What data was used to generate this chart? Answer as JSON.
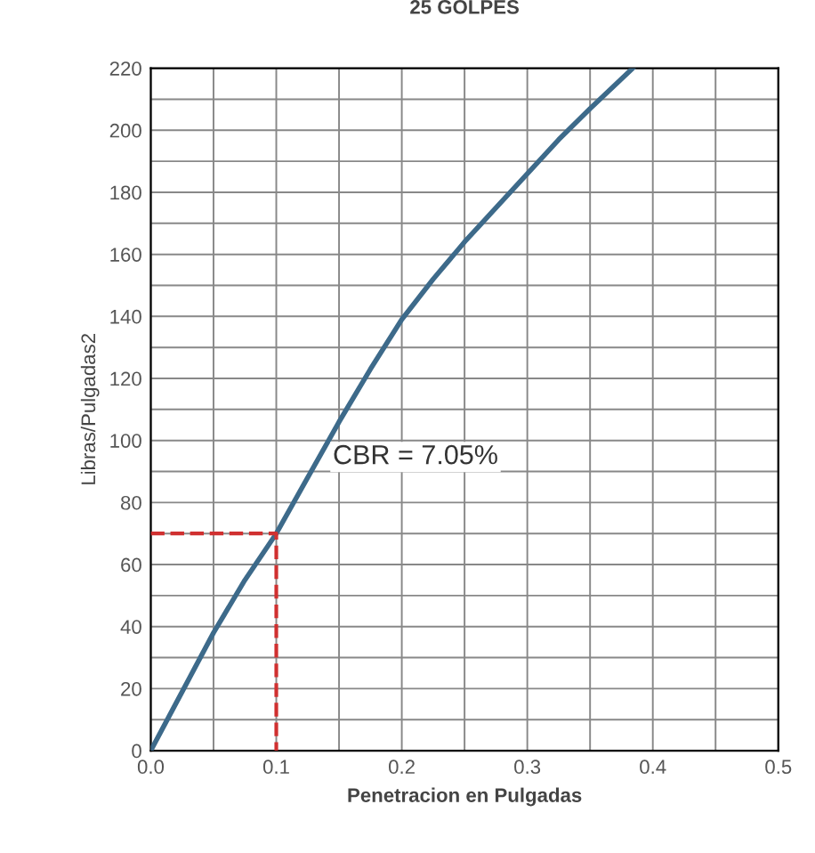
{
  "chart_data": {
    "type": "line",
    "title": "25 GOLPES",
    "xlabel": "Penetracion en Pulgadas",
    "ylabel": "Libras/Pulgadas2",
    "annotations": [
      "CBR = 7.05%"
    ],
    "series": [
      {
        "color": "#3d6a8a",
        "x": [
          0,
          0.025,
          0.05,
          0.075,
          0.1,
          0.125,
          0.15,
          0.175,
          0.2,
          0.225,
          0.25,
          0.275,
          0.3,
          0.325,
          0.35,
          0.384
        ],
        "values": [
          0,
          19,
          38,
          55,
          70,
          88,
          106,
          123,
          139,
          152,
          164,
          175,
          186,
          197,
          207,
          220
        ]
      },
      {
        "color": "#d03030",
        "line_style": "dashed",
        "x": [
          0,
          0.1,
          0.1
        ],
        "values": [
          70,
          70,
          0
        ]
      }
    ],
    "xlim": [
      0,
      0.5
    ],
    "ylim": [
      0,
      220
    ],
    "xticks": [
      {
        "value": 0,
        "label": "0.0"
      },
      {
        "value": 0.05,
        "label": null
      },
      0.1,
      {
        "value": 0.15,
        "label": null
      },
      0.2,
      {
        "value": 0.25,
        "label": null
      },
      0.3,
      {
        "value": 0.35,
        "label": null
      },
      0.4,
      {
        "value": 0.45,
        "label": null
      },
      0.5
    ],
    "yticks": [
      0,
      {
        "value": 10,
        "label": null
      },
      20,
      {
        "value": 30,
        "label": null
      },
      40,
      {
        "value": 50,
        "label": null
      },
      60,
      {
        "value": 70,
        "label": null
      },
      80,
      {
        "value": 90,
        "label": null
      },
      100,
      {
        "value": 110,
        "label": null
      },
      120,
      {
        "value": 130,
        "label": null
      },
      140,
      {
        "value": 150,
        "label": null
      },
      160,
      {
        "value": 170,
        "label": null
      },
      180,
      {
        "value": 190,
        "label": null
      },
      200,
      {
        "value": 210,
        "label": null
      },
      220
    ],
    "grid": true,
    "marker": "none",
    "line_style": "solid"
  }
}
